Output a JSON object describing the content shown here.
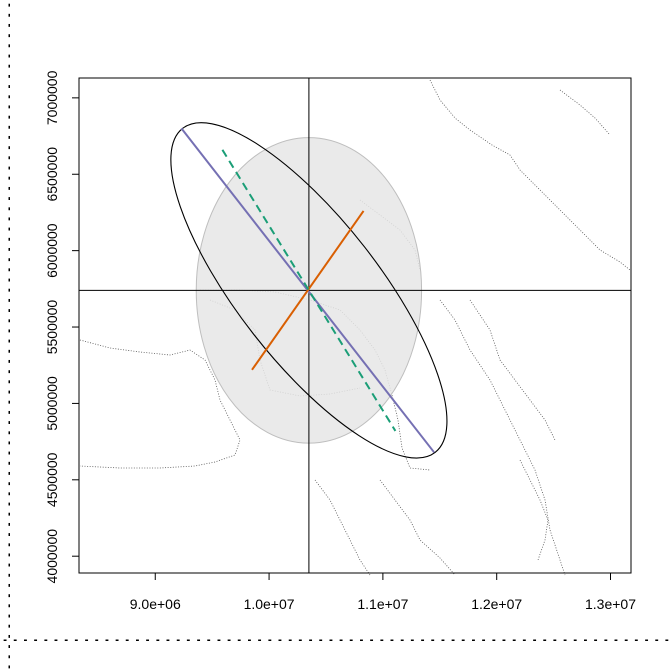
{
  "chart_data": {
    "type": "scatter",
    "title": "",
    "xlabel": "",
    "ylabel": "",
    "xlim": [
      8330000,
      13180000
    ],
    "ylim": [
      3890000,
      7130000
    ],
    "x_ticks": [
      {
        "value": 9000000,
        "label": "9.0e+06"
      },
      {
        "value": 10000000,
        "label": "1.0e+07"
      },
      {
        "value": 11000000,
        "label": "1.1e+07"
      },
      {
        "value": 12000000,
        "label": "1.2e+07"
      },
      {
        "value": 13000000,
        "label": "1.3e+07"
      }
    ],
    "y_ticks": [
      {
        "value": 4000000,
        "label": "4000000"
      },
      {
        "value": 4500000,
        "label": "4500000"
      },
      {
        "value": 5000000,
        "label": "5000000"
      },
      {
        "value": 5500000,
        "label": "5500000"
      },
      {
        "value": 6000000,
        "label": "6000000"
      },
      {
        "value": 6500000,
        "label": "6500000"
      },
      {
        "value": 7000000,
        "label": "7000000"
      }
    ],
    "center": [
      10350000,
      5740000
    ],
    "shaded_ellipse": {
      "center": [
        10350000,
        5740000
      ],
      "rx": 990000,
      "ry": 1000000,
      "fill": "#e6e6e6",
      "stroke": "#bebebe"
    },
    "outer_ellipse": {
      "center": [
        10350000,
        5740000
      ],
      "major_end_a": [
        9230000,
        6800000
      ],
      "major_end_b": [
        11450000,
        4680000
      ],
      "minor_half": 620000,
      "stroke": "#000000"
    },
    "segments": [
      {
        "x": [
          9230000,
          11450000
        ],
        "y": [
          6800000,
          4680000
        ],
        "color": "#7570b3",
        "dash": "solid"
      },
      {
        "x": [
          9850000,
          10830000
        ],
        "y": [
          5220000,
          6260000
        ],
        "color": "#d95f02",
        "dash": "solid"
      },
      {
        "x": [
          9590000,
          11110000
        ],
        "y": [
          6660000,
          4820000
        ],
        "color": "#1b9e77",
        "dash": "dashed"
      }
    ],
    "ref_lines": {
      "v": 10350000,
      "h": 5740000,
      "color": "#000000"
    },
    "coastline_color": "#555555"
  }
}
